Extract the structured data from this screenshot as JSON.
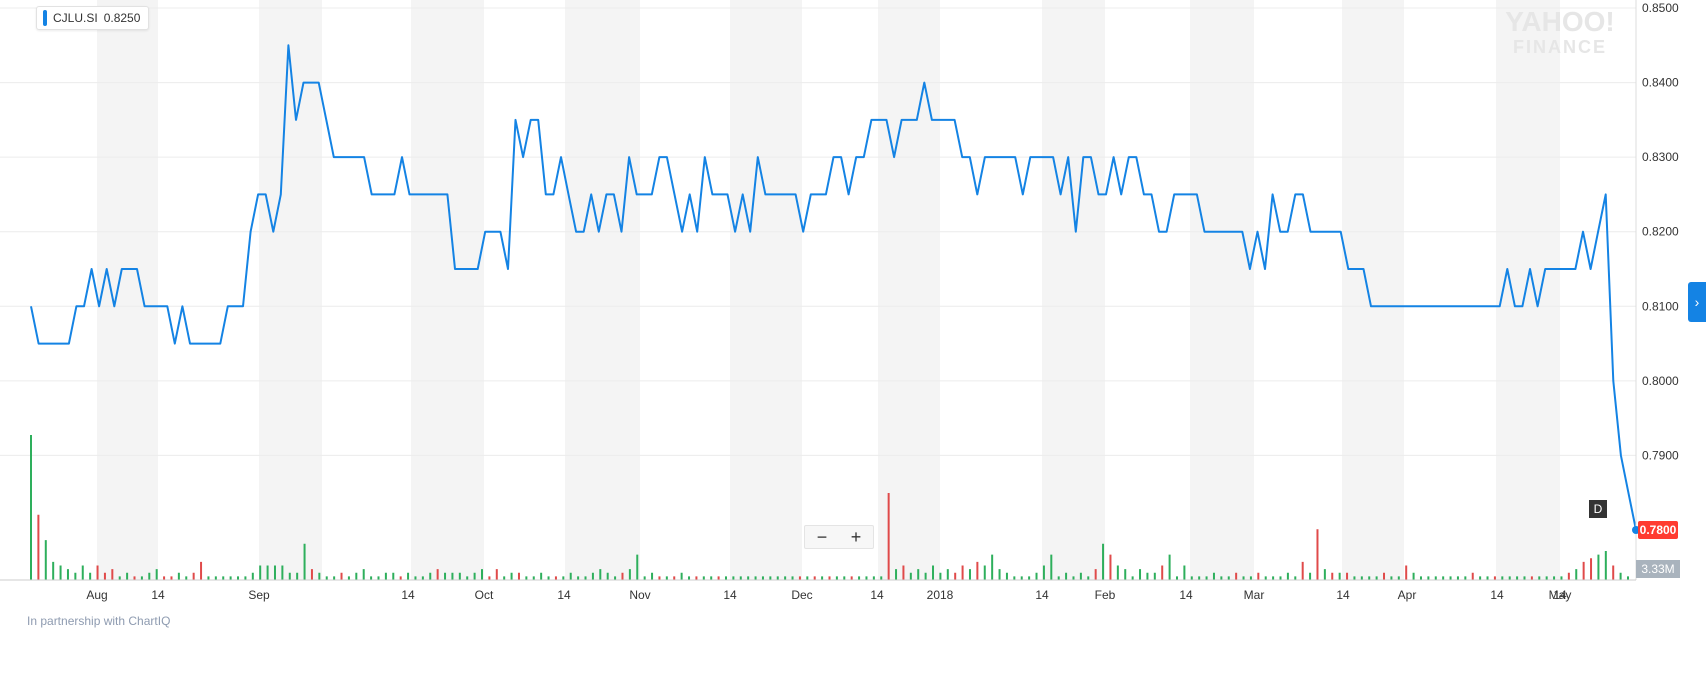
{
  "legend": {
    "symbol": "CJLU.SI",
    "price": "0.8250",
    "color": "#1483e4"
  },
  "brand": {
    "line1": "YAHOO!",
    "line2": "FINANCE"
  },
  "controls": {
    "zoom_out": "−",
    "zoom_in": "+",
    "periodicity_badge": "D",
    "scroll_icon": "chevron-right-icon"
  },
  "footer": {
    "partner_text": "In partnership with ChartIQ"
  },
  "colors": {
    "line": "#1483e4",
    "volume_up": "#2eaf5c",
    "volume_down": "#e04a4a",
    "last_price_bg": "#ff3b30"
  },
  "chart_data": {
    "type": "line",
    "symbol": "CJLU.SI",
    "x_tick_labels": [
      "Aug",
      "14",
      "Sep",
      "14",
      "Oct",
      "14",
      "Nov",
      "14",
      "Dec",
      "14",
      "2018",
      "14",
      "Feb",
      "14",
      "Mar",
      "14",
      "Apr",
      "14",
      "May",
      "14"
    ],
    "y_tick_labels": [
      "0.8500",
      "0.8400",
      "0.8300",
      "0.8200",
      "0.8100",
      "0.8000",
      "0.7900"
    ],
    "ylim": [
      0.78,
      0.85
    ],
    "last_price": "0.7800",
    "volume_label": "3.33M",
    "grid": true,
    "legend_placement": "top-left",
    "series": [
      {
        "values": [
          0.81,
          0.805,
          0.805,
          0.805,
          0.805,
          0.805,
          0.81,
          0.81,
          0.815,
          0.81,
          0.815,
          0.81,
          0.815,
          0.815,
          0.815,
          0.81,
          0.81,
          0.81,
          0.81,
          0.805,
          0.81,
          0.805,
          0.805,
          0.805,
          0.805,
          0.805,
          0.81,
          0.81,
          0.81,
          0.82,
          0.825,
          0.825,
          0.82,
          0.825,
          0.845,
          0.835,
          0.84,
          0.84,
          0.84,
          0.835,
          0.83,
          0.83,
          0.83,
          0.83,
          0.83,
          0.825,
          0.825,
          0.825,
          0.825,
          0.83,
          0.825,
          0.825,
          0.825,
          0.825,
          0.825,
          0.825,
          0.815,
          0.815,
          0.815,
          0.815,
          0.82,
          0.82,
          0.82,
          0.815,
          0.835,
          0.83,
          0.835,
          0.835,
          0.825,
          0.825,
          0.83,
          0.825,
          0.82,
          0.82,
          0.825,
          0.82,
          0.825,
          0.825,
          0.82,
          0.83,
          0.825,
          0.825,
          0.825,
          0.83,
          0.83,
          0.825,
          0.82,
          0.825,
          0.82,
          0.83,
          0.825,
          0.825,
          0.825,
          0.82,
          0.825,
          0.82,
          0.83,
          0.825,
          0.825,
          0.825,
          0.825,
          0.825,
          0.82,
          0.825,
          0.825,
          0.825,
          0.83,
          0.83,
          0.825,
          0.83,
          0.83,
          0.835,
          0.835,
          0.835,
          0.83,
          0.835,
          0.835,
          0.835,
          0.84,
          0.835,
          0.835,
          0.835,
          0.835,
          0.83,
          0.83,
          0.825,
          0.83,
          0.83,
          0.83,
          0.83,
          0.83,
          0.825,
          0.83,
          0.83,
          0.83,
          0.83,
          0.825,
          0.83,
          0.82,
          0.83,
          0.83,
          0.825,
          0.825,
          0.83,
          0.825,
          0.83,
          0.83,
          0.825,
          0.825,
          0.82,
          0.82,
          0.825,
          0.825,
          0.825,
          0.825,
          0.82,
          0.82,
          0.82,
          0.82,
          0.82,
          0.82,
          0.815,
          0.82,
          0.815,
          0.825,
          0.82,
          0.82,
          0.825,
          0.825,
          0.82,
          0.82,
          0.82,
          0.82,
          0.82,
          0.815,
          0.815,
          0.815,
          0.81,
          0.81,
          0.81,
          0.81,
          0.81,
          0.81,
          0.81,
          0.81,
          0.81,
          0.81,
          0.81,
          0.81,
          0.81,
          0.81,
          0.81,
          0.81,
          0.81,
          0.81,
          0.815,
          0.81,
          0.81,
          0.815,
          0.81,
          0.815,
          0.815,
          0.815,
          0.815,
          0.815,
          0.82,
          0.815,
          0.82,
          0.825,
          0.8,
          0.79,
          0.785,
          0.78
        ]
      }
    ],
    "volume": [
      {
        "v": 2.0,
        "up": true
      },
      {
        "v": 0.9,
        "up": false
      },
      {
        "v": 0.55,
        "up": true
      },
      {
        "v": 0.25,
        "up": true
      },
      {
        "v": 0.2,
        "up": true
      },
      {
        "v": 0.15,
        "up": true
      },
      {
        "v": 0.1,
        "up": true
      },
      {
        "v": 0.2,
        "up": true
      },
      {
        "v": 0.1,
        "up": true
      },
      {
        "v": 0.2,
        "up": false
      },
      {
        "v": 0.1,
        "up": false
      },
      {
        "v": 0.15,
        "up": false
      },
      {
        "v": 0.05,
        "up": true
      },
      {
        "v": 0.1,
        "up": true
      },
      {
        "v": 0.05,
        "up": false
      },
      {
        "v": 0.05,
        "up": true
      },
      {
        "v": 0.1,
        "up": true
      },
      {
        "v": 0.15,
        "up": true
      },
      {
        "v": 0.05,
        "up": false
      },
      {
        "v": 0.05,
        "up": false
      },
      {
        "v": 0.1,
        "up": true
      },
      {
        "v": 0.05,
        "up": true
      },
      {
        "v": 0.1,
        "up": false
      },
      {
        "v": 0.25,
        "up": false
      },
      {
        "v": 0.05,
        "up": true
      },
      {
        "v": 0.05,
        "up": true
      },
      {
        "v": 0.05,
        "up": true
      },
      {
        "v": 0.05,
        "up": true
      },
      {
        "v": 0.05,
        "up": true
      },
      {
        "v": 0.05,
        "up": true
      },
      {
        "v": 0.1,
        "up": true
      },
      {
        "v": 0.2,
        "up": true
      },
      {
        "v": 0.2,
        "up": true
      },
      {
        "v": 0.2,
        "up": true
      },
      {
        "v": 0.2,
        "up": true
      },
      {
        "v": 0.1,
        "up": true
      },
      {
        "v": 0.1,
        "up": true
      },
      {
        "v": 0.5,
        "up": true
      },
      {
        "v": 0.15,
        "up": false
      },
      {
        "v": 0.1,
        "up": true
      },
      {
        "v": 0.05,
        "up": true
      },
      {
        "v": 0.05,
        "up": true
      },
      {
        "v": 0.1,
        "up": false
      },
      {
        "v": 0.05,
        "up": true
      },
      {
        "v": 0.1,
        "up": true
      },
      {
        "v": 0.15,
        "up": true
      },
      {
        "v": 0.05,
        "up": true
      },
      {
        "v": 0.05,
        "up": true
      },
      {
        "v": 0.1,
        "up": true
      },
      {
        "v": 0.1,
        "up": true
      },
      {
        "v": 0.05,
        "up": false
      },
      {
        "v": 0.1,
        "up": true
      },
      {
        "v": 0.05,
        "up": true
      },
      {
        "v": 0.05,
        "up": true
      },
      {
        "v": 0.1,
        "up": true
      },
      {
        "v": 0.15,
        "up": false
      },
      {
        "v": 0.1,
        "up": true
      },
      {
        "v": 0.1,
        "up": true
      },
      {
        "v": 0.1,
        "up": true
      },
      {
        "v": 0.05,
        "up": true
      },
      {
        "v": 0.1,
        "up": true
      },
      {
        "v": 0.15,
        "up": true
      },
      {
        "v": 0.05,
        "up": false
      },
      {
        "v": 0.15,
        "up": false
      },
      {
        "v": 0.05,
        "up": true
      },
      {
        "v": 0.1,
        "up": true
      },
      {
        "v": 0.1,
        "up": false
      },
      {
        "v": 0.05,
        "up": true
      },
      {
        "v": 0.05,
        "up": true
      },
      {
        "v": 0.1,
        "up": true
      },
      {
        "v": 0.05,
        "up": true
      },
      {
        "v": 0.05,
        "up": false
      },
      {
        "v": 0.05,
        "up": true
      },
      {
        "v": 0.1,
        "up": true
      },
      {
        "v": 0.05,
        "up": true
      },
      {
        "v": 0.05,
        "up": true
      },
      {
        "v": 0.1,
        "up": true
      },
      {
        "v": 0.15,
        "up": true
      },
      {
        "v": 0.1,
        "up": true
      },
      {
        "v": 0.05,
        "up": true
      },
      {
        "v": 0.1,
        "up": false
      },
      {
        "v": 0.15,
        "up": true
      },
      {
        "v": 0.35,
        "up": true
      },
      {
        "v": 0.05,
        "up": true
      },
      {
        "v": 0.1,
        "up": true
      },
      {
        "v": 0.05,
        "up": false
      },
      {
        "v": 0.05,
        "up": true
      },
      {
        "v": 0.05,
        "up": false
      },
      {
        "v": 0.1,
        "up": true
      },
      {
        "v": 0.05,
        "up": true
      },
      {
        "v": 0.05,
        "up": false
      },
      {
        "v": 0.05,
        "up": true
      },
      {
        "v": 0.05,
        "up": true
      },
      {
        "v": 0.05,
        "up": false
      },
      {
        "v": 0.05,
        "up": true
      },
      {
        "v": 0.05,
        "up": true
      },
      {
        "v": 0.05,
        "up": true
      },
      {
        "v": 0.05,
        "up": true
      },
      {
        "v": 0.05,
        "up": true
      },
      {
        "v": 0.05,
        "up": true
      },
      {
        "v": 0.05,
        "up": true
      },
      {
        "v": 0.05,
        "up": true
      },
      {
        "v": 0.05,
        "up": true
      },
      {
        "v": 0.05,
        "up": true
      },
      {
        "v": 0.05,
        "up": false
      },
      {
        "v": 0.05,
        "up": true
      },
      {
        "v": 0.05,
        "up": false
      },
      {
        "v": 0.05,
        "up": true
      },
      {
        "v": 0.05,
        "up": false
      },
      {
        "v": 0.05,
        "up": true
      },
      {
        "v": 0.05,
        "up": true
      },
      {
        "v": 0.05,
        "up": false
      },
      {
        "v": 0.05,
        "up": true
      },
      {
        "v": 0.05,
        "up": true
      },
      {
        "v": 0.05,
        "up": true
      },
      {
        "v": 0.05,
        "up": true
      },
      {
        "v": 1.2,
        "up": false
      },
      {
        "v": 0.15,
        "up": true
      },
      {
        "v": 0.2,
        "up": false
      },
      {
        "v": 0.1,
        "up": true
      },
      {
        "v": 0.15,
        "up": true
      },
      {
        "v": 0.1,
        "up": true
      },
      {
        "v": 0.2,
        "up": true
      },
      {
        "v": 0.1,
        "up": true
      },
      {
        "v": 0.15,
        "up": true
      },
      {
        "v": 0.1,
        "up": false
      },
      {
        "v": 0.2,
        "up": false
      },
      {
        "v": 0.15,
        "up": true
      },
      {
        "v": 0.25,
        "up": false
      },
      {
        "v": 0.2,
        "up": true
      },
      {
        "v": 0.35,
        "up": true
      },
      {
        "v": 0.15,
        "up": true
      },
      {
        "v": 0.1,
        "up": true
      },
      {
        "v": 0.05,
        "up": true
      },
      {
        "v": 0.05,
        "up": true
      },
      {
        "v": 0.05,
        "up": true
      },
      {
        "v": 0.1,
        "up": true
      },
      {
        "v": 0.2,
        "up": true
      },
      {
        "v": 0.35,
        "up": true
      },
      {
        "v": 0.05,
        "up": true
      },
      {
        "v": 0.1,
        "up": true
      },
      {
        "v": 0.05,
        "up": true
      },
      {
        "v": 0.1,
        "up": true
      },
      {
        "v": 0.05,
        "up": true
      },
      {
        "v": 0.15,
        "up": false
      },
      {
        "v": 0.5,
        "up": true
      },
      {
        "v": 0.35,
        "up": false
      },
      {
        "v": 0.2,
        "up": true
      },
      {
        "v": 0.15,
        "up": true
      },
      {
        "v": 0.05,
        "up": true
      },
      {
        "v": 0.15,
        "up": true
      },
      {
        "v": 0.1,
        "up": true
      },
      {
        "v": 0.1,
        "up": true
      },
      {
        "v": 0.2,
        "up": false
      },
      {
        "v": 0.35,
        "up": true
      },
      {
        "v": 0.05,
        "up": true
      },
      {
        "v": 0.2,
        "up": true
      },
      {
        "v": 0.05,
        "up": true
      },
      {
        "v": 0.05,
        "up": true
      },
      {
        "v": 0.05,
        "up": true
      },
      {
        "v": 0.1,
        "up": true
      },
      {
        "v": 0.05,
        "up": true
      },
      {
        "v": 0.05,
        "up": true
      },
      {
        "v": 0.1,
        "up": false
      },
      {
        "v": 0.05,
        "up": true
      },
      {
        "v": 0.05,
        "up": true
      },
      {
        "v": 0.1,
        "up": false
      },
      {
        "v": 0.05,
        "up": true
      },
      {
        "v": 0.05,
        "up": true
      },
      {
        "v": 0.05,
        "up": true
      },
      {
        "v": 0.1,
        "up": true
      },
      {
        "v": 0.05,
        "up": true
      },
      {
        "v": 0.25,
        "up": false
      },
      {
        "v": 0.1,
        "up": true
      },
      {
        "v": 0.7,
        "up": false
      },
      {
        "v": 0.15,
        "up": true
      },
      {
        "v": 0.1,
        "up": false
      },
      {
        "v": 0.1,
        "up": true
      },
      {
        "v": 0.1,
        "up": false
      },
      {
        "v": 0.05,
        "up": true
      },
      {
        "v": 0.05,
        "up": true
      },
      {
        "v": 0.05,
        "up": true
      },
      {
        "v": 0.05,
        "up": true
      },
      {
        "v": 0.1,
        "up": false
      },
      {
        "v": 0.05,
        "up": true
      },
      {
        "v": 0.05,
        "up": true
      },
      {
        "v": 0.2,
        "up": false
      },
      {
        "v": 0.1,
        "up": true
      },
      {
        "v": 0.05,
        "up": true
      },
      {
        "v": 0.05,
        "up": true
      },
      {
        "v": 0.05,
        "up": true
      },
      {
        "v": 0.05,
        "up": true
      },
      {
        "v": 0.05,
        "up": true
      },
      {
        "v": 0.05,
        "up": true
      },
      {
        "v": 0.05,
        "up": true
      },
      {
        "v": 0.1,
        "up": false
      },
      {
        "v": 0.05,
        "up": true
      },
      {
        "v": 0.05,
        "up": true
      },
      {
        "v": 0.05,
        "up": false
      },
      {
        "v": 0.05,
        "up": true
      },
      {
        "v": 0.05,
        "up": true
      },
      {
        "v": 0.05,
        "up": true
      },
      {
        "v": 0.05,
        "up": true
      },
      {
        "v": 0.05,
        "up": false
      },
      {
        "v": 0.05,
        "up": true
      },
      {
        "v": 0.05,
        "up": true
      },
      {
        "v": 0.05,
        "up": true
      },
      {
        "v": 0.05,
        "up": true
      },
      {
        "v": 0.1,
        "up": false
      },
      {
        "v": 0.15,
        "up": true
      },
      {
        "v": 0.25,
        "up": false
      },
      {
        "v": 0.3,
        "up": false
      },
      {
        "v": 0.35,
        "up": true
      },
      {
        "v": 0.4,
        "up": true
      },
      {
        "v": 0.2,
        "up": false
      },
      {
        "v": 0.1,
        "up": true
      },
      {
        "v": 0.05,
        "up": true
      }
    ]
  }
}
